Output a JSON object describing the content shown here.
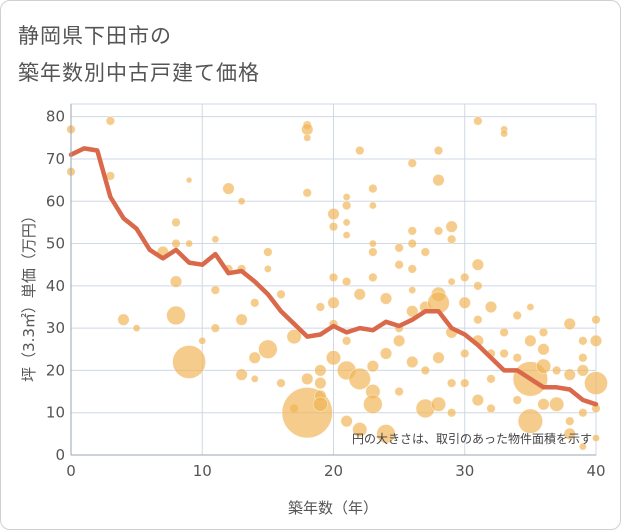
{
  "title_line1": "静岡県下田市の",
  "title_line2": "築年数別中古戸建て価格",
  "chart_data": {
    "type": "scatter",
    "title": "静岡県下田市の築年数別中古戸建て価格",
    "xlabel": "築年数（年）",
    "ylabel": "坪（3.3㎡）単価（万円）",
    "xlim": [
      0,
      40
    ],
    "ylim": [
      0,
      83
    ],
    "xticks": [
      0,
      10,
      20,
      30,
      40
    ],
    "yticks": [
      0,
      10,
      20,
      30,
      40,
      50,
      60,
      70,
      80
    ],
    "grid": true,
    "note": "円の大きさは、取引のあった物件面積を示す",
    "bubble_color": "#f0b454",
    "line_color": "#d9694a",
    "points": [
      {
        "x": 0,
        "y": 77,
        "s": 1.2
      },
      {
        "x": 0,
        "y": 67,
        "s": 1.2
      },
      {
        "x": 3,
        "y": 79,
        "s": 1.2
      },
      {
        "x": 3,
        "y": 66,
        "s": 1.2
      },
      {
        "x": 4,
        "y": 32,
        "s": 1.6
      },
      {
        "x": 5,
        "y": 30,
        "s": 1
      },
      {
        "x": 7,
        "y": 48,
        "s": 1.6
      },
      {
        "x": 8,
        "y": 55,
        "s": 1.2
      },
      {
        "x": 8,
        "y": 50,
        "s": 1.2
      },
      {
        "x": 8,
        "y": 41,
        "s": 1.6
      },
      {
        "x": 8,
        "y": 33,
        "s": 2.6
      },
      {
        "x": 9,
        "y": 65,
        "s": 0.8
      },
      {
        "x": 9,
        "y": 50,
        "s": 1
      },
      {
        "x": 9,
        "y": 22,
        "s": 4.6
      },
      {
        "x": 10,
        "y": 27,
        "s": 1
      },
      {
        "x": 11,
        "y": 51,
        "s": 1
      },
      {
        "x": 11,
        "y": 39,
        "s": 1.2
      },
      {
        "x": 11,
        "y": 30,
        "s": 1.2
      },
      {
        "x": 12,
        "y": 63,
        "s": 1.6
      },
      {
        "x": 12,
        "y": 44,
        "s": 1.2
      },
      {
        "x": 13,
        "y": 60,
        "s": 1
      },
      {
        "x": 13,
        "y": 44,
        "s": 1.2
      },
      {
        "x": 13,
        "y": 32,
        "s": 1.6
      },
      {
        "x": 13,
        "y": 19,
        "s": 1.6
      },
      {
        "x": 14,
        "y": 36,
        "s": 1.2
      },
      {
        "x": 14,
        "y": 23,
        "s": 1.6
      },
      {
        "x": 14,
        "y": 18,
        "s": 1
      },
      {
        "x": 15,
        "y": 48,
        "s": 1.2
      },
      {
        "x": 15,
        "y": 44,
        "s": 1
      },
      {
        "x": 15,
        "y": 25,
        "s": 2.6
      },
      {
        "x": 16,
        "y": 38,
        "s": 1.2
      },
      {
        "x": 16,
        "y": 17,
        "s": 1.2
      },
      {
        "x": 17,
        "y": 28,
        "s": 2
      },
      {
        "x": 17,
        "y": 11,
        "s": 1.2
      },
      {
        "x": 18,
        "y": 78,
        "s": 1.2
      },
      {
        "x": 18,
        "y": 77,
        "s": 1.6
      },
      {
        "x": 18,
        "y": 75,
        "s": 1
      },
      {
        "x": 18,
        "y": 62,
        "s": 1.2
      },
      {
        "x": 18,
        "y": 10,
        "s": 7
      },
      {
        "x": 18,
        "y": 18,
        "s": 1.6
      },
      {
        "x": 19,
        "y": 35,
        "s": 1.2
      },
      {
        "x": 19,
        "y": 20,
        "s": 1.6
      },
      {
        "x": 19,
        "y": 14,
        "s": 1.6
      },
      {
        "x": 19,
        "y": 12,
        "s": 2
      },
      {
        "x": 19,
        "y": 17,
        "s": 1.6
      },
      {
        "x": 20,
        "y": 57,
        "s": 1.6
      },
      {
        "x": 20,
        "y": 54,
        "s": 1.2
      },
      {
        "x": 20,
        "y": 42,
        "s": 1.2
      },
      {
        "x": 20,
        "y": 36,
        "s": 1.6
      },
      {
        "x": 20,
        "y": 31,
        "s": 1.2
      },
      {
        "x": 20,
        "y": 23,
        "s": 2
      },
      {
        "x": 21,
        "y": 61,
        "s": 1
      },
      {
        "x": 21,
        "y": 59,
        "s": 1.2
      },
      {
        "x": 21,
        "y": 55,
        "s": 1
      },
      {
        "x": 21,
        "y": 52,
        "s": 1
      },
      {
        "x": 21,
        "y": 41,
        "s": 1.2
      },
      {
        "x": 21,
        "y": 27,
        "s": 1.2
      },
      {
        "x": 21,
        "y": 20,
        "s": 2.6
      },
      {
        "x": 21,
        "y": 8,
        "s": 1.6
      },
      {
        "x": 22,
        "y": 72,
        "s": 1.2
      },
      {
        "x": 22,
        "y": 38,
        "s": 1.6
      },
      {
        "x": 22,
        "y": 18,
        "s": 3
      },
      {
        "x": 22,
        "y": 6,
        "s": 2
      },
      {
        "x": 23,
        "y": 63,
        "s": 1.2
      },
      {
        "x": 23,
        "y": 59,
        "s": 1
      },
      {
        "x": 23,
        "y": 50,
        "s": 1
      },
      {
        "x": 23,
        "y": 48,
        "s": 1.2
      },
      {
        "x": 23,
        "y": 42,
        "s": 1.2
      },
      {
        "x": 23,
        "y": 21,
        "s": 1.6
      },
      {
        "x": 23,
        "y": 15,
        "s": 2
      },
      {
        "x": 23,
        "y": 12,
        "s": 2.6
      },
      {
        "x": 24,
        "y": 37,
        "s": 1.6
      },
      {
        "x": 24,
        "y": 24,
        "s": 1.6
      },
      {
        "x": 24,
        "y": 5,
        "s": 2.6
      },
      {
        "x": 25,
        "y": 49,
        "s": 1.2
      },
      {
        "x": 25,
        "y": 45,
        "s": 1.2
      },
      {
        "x": 25,
        "y": 30,
        "s": 1.2
      },
      {
        "x": 25,
        "y": 27,
        "s": 1.6
      },
      {
        "x": 25,
        "y": 15,
        "s": 1.2
      },
      {
        "x": 26,
        "y": 69,
        "s": 1.2
      },
      {
        "x": 26,
        "y": 53,
        "s": 1.2
      },
      {
        "x": 26,
        "y": 50,
        "s": 1.2
      },
      {
        "x": 26,
        "y": 44,
        "s": 1.2
      },
      {
        "x": 26,
        "y": 39,
        "s": 1
      },
      {
        "x": 26,
        "y": 34,
        "s": 1.6
      },
      {
        "x": 26,
        "y": 22,
        "s": 1.6
      },
      {
        "x": 27,
        "y": 48,
        "s": 1.2
      },
      {
        "x": 27,
        "y": 35,
        "s": 1.6
      },
      {
        "x": 27,
        "y": 20,
        "s": 1.2
      },
      {
        "x": 27,
        "y": 11,
        "s": 2.6
      },
      {
        "x": 28,
        "y": 72,
        "s": 1.2
      },
      {
        "x": 28,
        "y": 65,
        "s": 1.6
      },
      {
        "x": 28,
        "y": 53,
        "s": 1.2
      },
      {
        "x": 28,
        "y": 38,
        "s": 2
      },
      {
        "x": 28,
        "y": 36,
        "s": 3
      },
      {
        "x": 28,
        "y": 23,
        "s": 1.6
      },
      {
        "x": 28,
        "y": 12,
        "s": 2
      },
      {
        "x": 29,
        "y": 54,
        "s": 1.6
      },
      {
        "x": 29,
        "y": 51,
        "s": 1.2
      },
      {
        "x": 29,
        "y": 41,
        "s": 1
      },
      {
        "x": 29,
        "y": 29,
        "s": 1.6
      },
      {
        "x": 29,
        "y": 17,
        "s": 1.2
      },
      {
        "x": 29,
        "y": 10,
        "s": 1.2
      },
      {
        "x": 30,
        "y": 42,
        "s": 1.2
      },
      {
        "x": 30,
        "y": 36,
        "s": 1.6
      },
      {
        "x": 30,
        "y": 24,
        "s": 1.2
      },
      {
        "x": 30,
        "y": 17,
        "s": 1.2
      },
      {
        "x": 31,
        "y": 79,
        "s": 1.2
      },
      {
        "x": 31,
        "y": 45,
        "s": 1.6
      },
      {
        "x": 31,
        "y": 40,
        "s": 1.2
      },
      {
        "x": 31,
        "y": 32,
        "s": 1.2
      },
      {
        "x": 31,
        "y": 27,
        "s": 1.6
      },
      {
        "x": 31,
        "y": 13,
        "s": 1.6
      },
      {
        "x": 32,
        "y": 35,
        "s": 1.6
      },
      {
        "x": 32,
        "y": 24,
        "s": 1.2
      },
      {
        "x": 32,
        "y": 18,
        "s": 1.2
      },
      {
        "x": 32,
        "y": 11,
        "s": 1.2
      },
      {
        "x": 33,
        "y": 77,
        "s": 1
      },
      {
        "x": 33,
        "y": 76,
        "s": 1
      },
      {
        "x": 33,
        "y": 29,
        "s": 1.2
      },
      {
        "x": 33,
        "y": 24,
        "s": 1.2
      },
      {
        "x": 34,
        "y": 33,
        "s": 1.2
      },
      {
        "x": 34,
        "y": 23,
        "s": 1.2
      },
      {
        "x": 34,
        "y": 13,
        "s": 1.2
      },
      {
        "x": 35,
        "y": 35,
        "s": 1
      },
      {
        "x": 35,
        "y": 27,
        "s": 1.6
      },
      {
        "x": 35,
        "y": 18,
        "s": 4.8
      },
      {
        "x": 35,
        "y": 8,
        "s": 3.4
      },
      {
        "x": 36,
        "y": 29,
        "s": 1.2
      },
      {
        "x": 36,
        "y": 25,
        "s": 1.6
      },
      {
        "x": 36,
        "y": 21,
        "s": 2
      },
      {
        "x": 36,
        "y": 12,
        "s": 1.6
      },
      {
        "x": 37,
        "y": 20,
        "s": 1.2
      },
      {
        "x": 37,
        "y": 12,
        "s": 2
      },
      {
        "x": 38,
        "y": 31,
        "s": 1.6
      },
      {
        "x": 38,
        "y": 19,
        "s": 1.6
      },
      {
        "x": 38,
        "y": 8,
        "s": 1.2
      },
      {
        "x": 38,
        "y": 5,
        "s": 1.6
      },
      {
        "x": 39,
        "y": 27,
        "s": 1.2
      },
      {
        "x": 39,
        "y": 23,
        "s": 1.2
      },
      {
        "x": 39,
        "y": 20,
        "s": 1.6
      },
      {
        "x": 39,
        "y": 10,
        "s": 1.2
      },
      {
        "x": 39,
        "y": 2,
        "s": 1
      },
      {
        "x": 40,
        "y": 32,
        "s": 1.2
      },
      {
        "x": 40,
        "y": 27,
        "s": 1.6
      },
      {
        "x": 40,
        "y": 17,
        "s": 3.2
      },
      {
        "x": 40,
        "y": 11,
        "s": 1.2
      },
      {
        "x": 40,
        "y": 4,
        "s": 1
      }
    ],
    "line": {
      "x": [
        0,
        1,
        2,
        3,
        4,
        5,
        6,
        7,
        8,
        9,
        10,
        11,
        12,
        13,
        14,
        15,
        16,
        17,
        18,
        19,
        20,
        21,
        22,
        23,
        24,
        25,
        26,
        27,
        28,
        29,
        30,
        31,
        32,
        33,
        34,
        35,
        36,
        37,
        38,
        39,
        40
      ],
      "y": [
        71,
        72.5,
        72,
        61,
        56,
        53.5,
        48.5,
        46.5,
        48.5,
        45.5,
        45,
        47.5,
        43,
        43.5,
        41,
        38,
        34,
        31,
        28,
        28.5,
        30.5,
        29,
        30,
        29.5,
        31.5,
        30.5,
        32,
        34,
        34,
        30,
        28.5,
        26,
        23,
        20,
        20,
        18,
        16,
        16,
        15.5,
        13,
        12
      ]
    }
  }
}
